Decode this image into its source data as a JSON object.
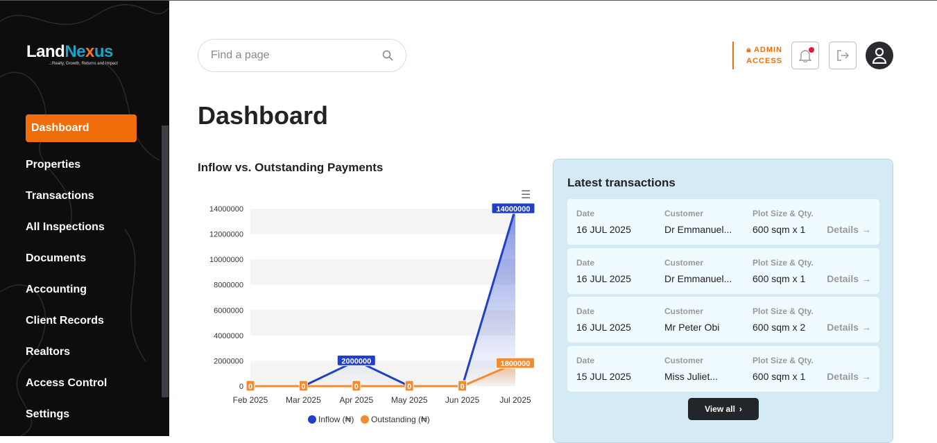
{
  "logo": {
    "name_a": "Land",
    "name_b": "Ne",
    "name_x": "x",
    "name_c": "us",
    "tagline": "...Realty, Growth, Returns and Impact"
  },
  "nav": [
    "Dashboard",
    "Properties",
    "Transactions",
    "All Inspections",
    "Documents",
    "Accounting",
    "Client Records",
    "Realtors",
    "Access Control",
    "Settings"
  ],
  "search": {
    "placeholder": "Find a page"
  },
  "header": {
    "admin_line1": "ADMIN",
    "admin_line2": "ACCESS"
  },
  "page_title": "Dashboard",
  "chart_data": {
    "type": "line",
    "title": "Inflow vs. Outstanding Payments",
    "categories": [
      "Feb 2025",
      "Mar 2025",
      "Apr 2025",
      "May 2025",
      "Jun 2025",
      "Jul 2025"
    ],
    "ylim": [
      0,
      14000000
    ],
    "yticks": [
      0,
      2000000,
      4000000,
      6000000,
      8000000,
      10000000,
      12000000,
      14000000
    ],
    "series": [
      {
        "name": "Inflow (₦)",
        "color": "#1f3fc9",
        "values": [
          0,
          0,
          2000000,
          0,
          0,
          14000000
        ]
      },
      {
        "name": "Outstanding (₦)",
        "color": "#f58a2e",
        "values": [
          0,
          0,
          0,
          0,
          0,
          1800000
        ]
      }
    ],
    "legend": "bottom"
  },
  "transactions": {
    "title": "Latest transactions",
    "labels": {
      "date": "Date",
      "customer": "Customer",
      "plot": "Plot Size & Qty.",
      "details": "Details"
    },
    "rows": [
      {
        "date": "16 JUL 2025",
        "customer": "Dr Emmanuel...",
        "plot": "600 sqm x 1"
      },
      {
        "date": "16 JUL 2025",
        "customer": "Dr Emmanuel...",
        "plot": "600 sqm x 1"
      },
      {
        "date": "16 JUL 2025",
        "customer": "Mr Peter Obi",
        "plot": "600 sqm x 2"
      },
      {
        "date": "15 JUL 2025",
        "customer": "Miss Juliet...",
        "plot": "600 sqm x 1"
      }
    ],
    "view_all": "View all"
  }
}
